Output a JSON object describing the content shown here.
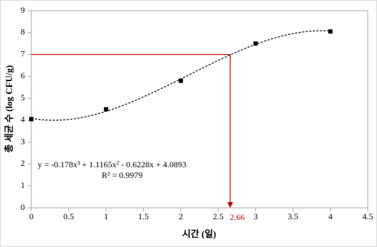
{
  "chart_data": {
    "type": "scatter",
    "x_label": "시간 (일)",
    "y_label": "총 세균 수 (log CFU/g)",
    "x": [
      0,
      1,
      2,
      3,
      4
    ],
    "values": [
      4.05,
      4.5,
      5.8,
      7.5,
      8.05
    ],
    "color": "#000000",
    "xlim": [
      0,
      4.5
    ],
    "xticks": [
      0,
      0.5,
      1,
      1.5,
      2,
      2.5,
      3,
      3.5,
      4,
      4.5
    ],
    "ylim": [
      0,
      9
    ],
    "yticks": [
      0,
      1,
      2,
      3,
      4,
      5,
      6,
      7,
      8,
      9
    ],
    "trendline": {
      "equation": "y = -0.178x³ + 1.1165x² - 0.6228x + 4.0893",
      "r_squared": "R² = 0.9979",
      "coefficients": [
        -0.178,
        1.1165,
        -0.6228,
        4.0893
      ]
    },
    "annotation": {
      "x": 2.66,
      "y": 7,
      "color": "#c00000"
    }
  }
}
